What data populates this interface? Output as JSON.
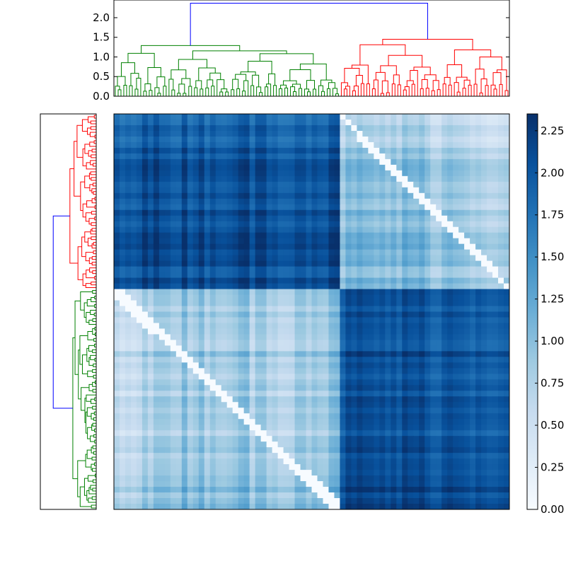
{
  "chart_data": [
    {
      "type": "dendrogram",
      "orientation": "top",
      "ylim": [
        0,
        2.45
      ],
      "yticks": [
        "0.0",
        "0.5",
        "1.0",
        "1.5",
        "2.0"
      ],
      "tick_values": [
        0.0,
        0.5,
        1.0,
        1.5,
        2.0
      ],
      "root_height": 2.37,
      "clusters": [
        {
          "name": "green cluster",
          "color": "#008000",
          "height": 1.29,
          "leaf_fraction": 0.57
        },
        {
          "name": "red cluster",
          "color": "#ff0000",
          "height": 1.45,
          "leaf_fraction": 0.43
        }
      ],
      "link_color_above_threshold": "#0000ff"
    },
    {
      "type": "dendrogram",
      "orientation": "left",
      "root_height": 2.37,
      "clusters": [
        {
          "name": "red cluster",
          "color": "#ff0000",
          "height": 1.45,
          "leaf_fraction": 0.44
        },
        {
          "name": "green cluster",
          "color": "#008000",
          "height": 1.29,
          "leaf_fraction": 0.56
        }
      ],
      "link_color_above_threshold": "#0000ff"
    },
    {
      "type": "heatmap",
      "cmap": "Blues",
      "vmin": 0.0,
      "vmax": 2.35,
      "blocks": [
        {
          "rows": "first 44% (red cluster)",
          "cols": "first 57% (green cluster)",
          "value_range": [
            1.6,
            2.3
          ]
        },
        {
          "rows": "first 44% (red cluster)",
          "cols": "last 43% (red cluster)",
          "value_range": [
            0.0,
            1.3
          ]
        },
        {
          "rows": "last 56% (green cluster)",
          "cols": "first 57% (green cluster)",
          "value_range": [
            0.0,
            1.2
          ]
        },
        {
          "rows": "last 56% (green cluster)",
          "cols": "last 43% (red cluster)",
          "value_range": [
            1.6,
            2.3
          ]
        }
      ],
      "diagonal_value": 0.0
    },
    {
      "type": "colorbar",
      "colormap": "Blues",
      "range": [
        0.0,
        2.35
      ],
      "tick_labels": [
        "0.00",
        "0.25",
        "0.50",
        "0.75",
        "1.00",
        "1.25",
        "1.50",
        "1.75",
        "2.00",
        "2.25"
      ],
      "tick_values": [
        0.0,
        0.25,
        0.5,
        0.75,
        1.0,
        1.25,
        1.5,
        1.75,
        2.0,
        2.25
      ]
    }
  ]
}
